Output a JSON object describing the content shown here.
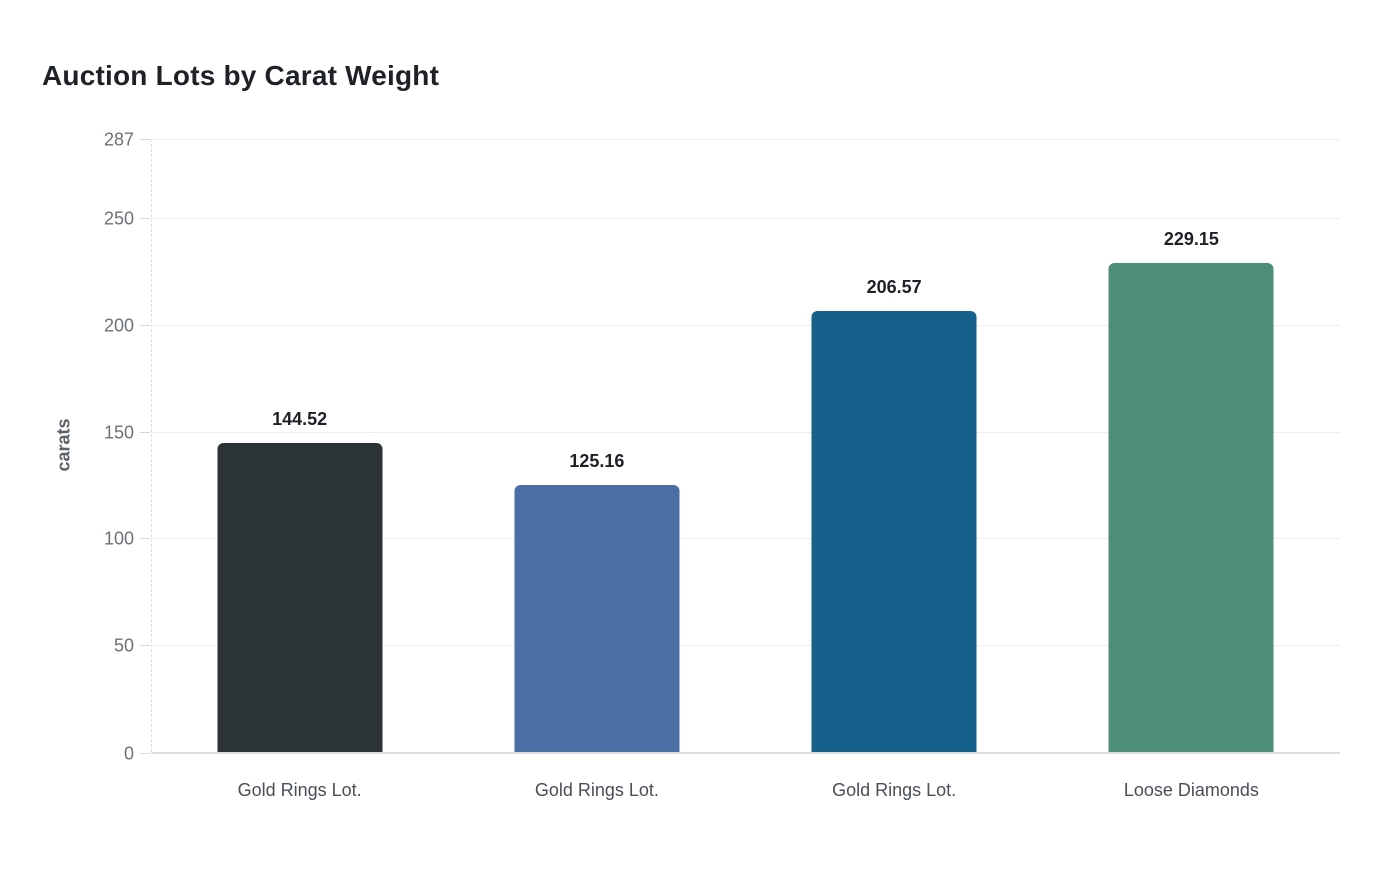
{
  "title": "Auction Lots by Carat Weight",
  "y_axis_title": "carats",
  "chart_data": {
    "type": "bar",
    "title": "Auction Lots by Carat Weight",
    "xlabel": "",
    "ylabel": "carats",
    "categories": [
      "Gold Rings Lot.",
      "Gold Rings Lot.",
      "Gold Rings Lot.",
      "Loose Diamonds"
    ],
    "values": [
      144.52,
      125.16,
      206.57,
      229.15
    ],
    "value_labels": [
      "144.52",
      "125.16",
      "206.57",
      "229.15"
    ],
    "bar_colors": [
      "#2c3336",
      "#4a6fa5",
      "#16608c",
      "#4d8e7b"
    ],
    "ylim": [
      0,
      287
    ],
    "yticks": [
      0,
      50,
      100,
      150,
      200,
      250,
      287
    ],
    "grid": "horizontal",
    "legend": "none",
    "background": "#ffffff",
    "gridline_color": "#ededed",
    "tick_label_color": "#6d7278",
    "value_label_color": "#1d2125",
    "title_color": "#1e2227"
  }
}
